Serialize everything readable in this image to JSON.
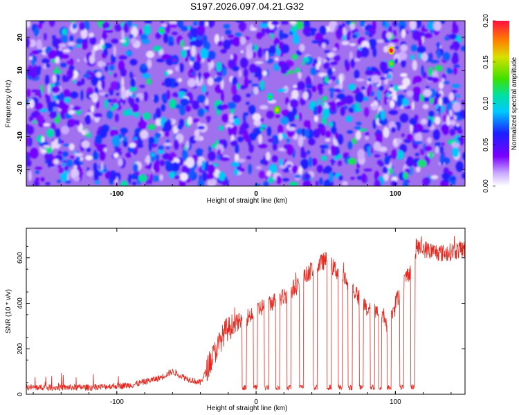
{
  "title": "S197.2026.097.04.21.G32",
  "chart_data": [
    {
      "type": "heatmap",
      "xlabel": "Height of straight line (km)",
      "ylabel": "Frequency (Hz)",
      "xlim": [
        -165,
        150
      ],
      "ylim": [
        -25,
        25
      ],
      "xticks": [
        -100,
        0,
        100
      ],
      "yticks": [
        -20,
        -10,
        0,
        10,
        20
      ],
      "colorbar": {
        "label": "Normalized spectral amplitude",
        "range": [
          0.0,
          0.2
        ],
        "ticks": [
          "0.00",
          "0.05",
          "0.10",
          "0.15",
          "0.20"
        ]
      },
      "hotspots": [
        {
          "x": 97,
          "y": 16,
          "value": 0.2
        },
        {
          "x": 97,
          "y": 12,
          "value": 0.14
        },
        {
          "x": 15,
          "y": -2,
          "value": 0.16
        },
        {
          "x": 10,
          "y": 2,
          "value": 0.12
        },
        {
          "x": -68,
          "y": 22,
          "value": 0.12
        }
      ]
    },
    {
      "type": "line",
      "xlabel": "Height of straight line (km)",
      "ylabel": "SNR (10 * v/v)",
      "xlim": [
        -165,
        150
      ],
      "ylim": [
        0,
        730
      ],
      "xticks": [
        -100,
        0,
        100
      ],
      "yticks": [
        0,
        200,
        400,
        600
      ],
      "series_color": "#e8281e",
      "trend": {
        "x": [
          -165,
          -120,
          -90,
          -70,
          -60,
          -50,
          -40,
          -30,
          -22,
          -15,
          -8,
          0,
          10,
          20,
          30,
          40,
          50,
          60,
          70,
          80,
          90,
          95,
          100,
          105,
          110,
          113,
          115,
          125,
          135,
          150
        ],
        "y": [
          30,
          30,
          40,
          70,
          100,
          70,
          50,
          180,
          280,
          310,
          330,
          370,
          400,
          430,
          480,
          550,
          590,
          530,
          460,
          370,
          350,
          300,
          400,
          480,
          540,
          560,
          650,
          630,
          620,
          640
        ]
      },
      "dropouts": [
        [
          -10,
          -7
        ],
        [
          -2,
          1
        ],
        [
          6,
          9
        ],
        [
          14,
          17
        ],
        [
          22,
          25
        ],
        [
          31,
          34
        ],
        [
          41,
          44
        ],
        [
          51,
          54
        ],
        [
          59,
          62
        ],
        [
          66,
          69
        ],
        [
          74,
          77
        ],
        [
          82,
          85
        ],
        [
          88,
          90
        ],
        [
          94,
          97
        ],
        [
          103,
          106
        ],
        [
          111,
          114
        ]
      ]
    }
  ]
}
